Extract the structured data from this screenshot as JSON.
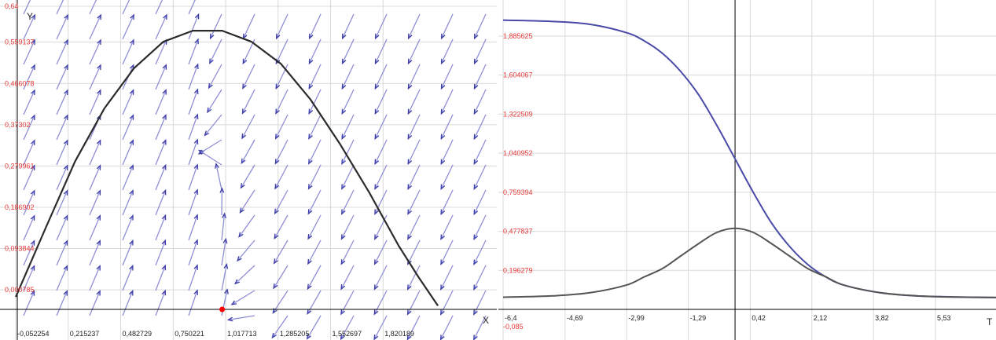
{
  "chart_data": [
    {
      "type": "line",
      "subtype": "direction-field",
      "xlabel": "X",
      "ylabel": "Y",
      "xlim": [
        -0.052254,
        2.4
      ],
      "ylim": [
        -0.045,
        0.64
      ],
      "x_ticks": [
        "-0,052254",
        "0,215237",
        "0,482729",
        "0,750221",
        "1,017713",
        "1,285205",
        "1,552697",
        "1,820189"
      ],
      "x_tick_values": [
        -0.052254,
        0.215237,
        0.482729,
        0.750221,
        1.017713,
        1.285205,
        1.552697,
        1.820189
      ],
      "y_ticks": [
        "0,64",
        "0,559137",
        "0,466078",
        "0,37302",
        "0,279961",
        "0,186902",
        "0,093844",
        "0,000785"
      ],
      "y_tick_values": [
        0.64,
        0.559137,
        0.466078,
        0.37302,
        0.279961,
        0.186902,
        0.093844,
        0.000785
      ],
      "field_colors": {
        "arrow": "#3d3da8",
        "arrow_light": "#8e8ed6"
      },
      "curve_color": "#2b2b2b",
      "series": [
        {
          "x": [
            -0.052,
            0.1,
            0.25,
            0.4,
            0.55,
            0.7,
            0.85,
            1.0,
            1.15,
            1.3,
            1.45,
            1.6,
            1.75,
            1.9,
            2.0,
            2.1
          ],
          "y": [
            -0.015,
            0.14,
            0.29,
            0.41,
            0.5,
            0.56,
            0.585,
            0.585,
            0.56,
            0.51,
            0.43,
            0.33,
            0.22,
            0.1,
            0.03,
            -0.035
          ]
        }
      ],
      "marker": {
        "x": 1.0,
        "y": 0.0,
        "color": "#ff0000"
      },
      "grid": true
    },
    {
      "type": "line",
      "xlabel": "T",
      "ylabel": "",
      "xlim": [
        -6.4,
        7.2
      ],
      "ylim": [
        -0.085,
        2.1
      ],
      "x_ticks": [
        "-6,4",
        "-4,69",
        "-2,99",
        "-1,29",
        "0,42",
        "2,12",
        "3,82",
        "5,53"
      ],
      "x_tick_values": [
        -6.4,
        -4.69,
        -2.99,
        -1.29,
        0.42,
        2.12,
        3.82,
        5.53
      ],
      "y_ticks": [
        "1,885625",
        "1,604067",
        "1,322509",
        "1,040952",
        "0,759394",
        "0,477837",
        "0,196279",
        "-0,085"
      ],
      "y_tick_values": [
        1.885625,
        1.604067,
        1.322509,
        1.040952,
        0.759394,
        0.477837,
        0.196279,
        -0.085
      ],
      "series": [
        {
          "color": "#4a4aa8",
          "x": [
            -6.4,
            -5.0,
            -4.0,
            -3.0,
            -2.5,
            -2.0,
            -1.5,
            -1.0,
            -0.5,
            0.0,
            0.5,
            1.0,
            1.5,
            2.0,
            2.5,
            3.0,
            4.0,
            5.0,
            6.0,
            7.2
          ],
          "y": [
            2.0,
            1.99,
            1.97,
            1.91,
            1.85,
            1.76,
            1.63,
            1.46,
            1.24,
            1.0,
            0.76,
            0.54,
            0.37,
            0.24,
            0.15,
            0.09,
            0.035,
            0.012,
            0.005,
            0.0
          ]
        },
        {
          "color": "#555555",
          "x": [
            -6.4,
            -5.0,
            -4.0,
            -3.0,
            -2.5,
            -2.0,
            -1.5,
            -1.0,
            -0.5,
            0.0,
            0.5,
            1.0,
            1.5,
            2.0,
            2.5,
            3.0,
            4.0,
            5.0,
            6.0,
            7.2
          ],
          "y": [
            0.003,
            0.013,
            0.035,
            0.09,
            0.15,
            0.21,
            0.3,
            0.39,
            0.47,
            0.5,
            0.47,
            0.39,
            0.3,
            0.21,
            0.15,
            0.09,
            0.035,
            0.013,
            0.004,
            0.001
          ]
        }
      ],
      "vertical_line_x": 0.0,
      "grid": true
    }
  ]
}
